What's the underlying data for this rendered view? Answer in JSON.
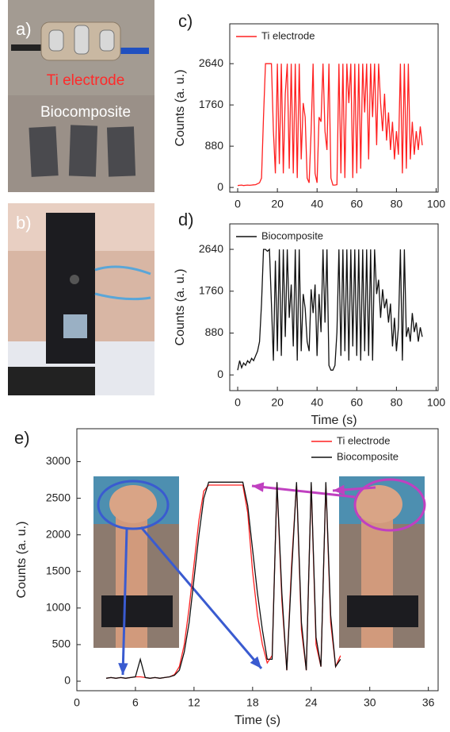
{
  "photos": {
    "a": {
      "label": "a)",
      "electrode_text": "Ti electrode",
      "composite_text": "Biocomposite"
    },
    "b": {
      "label": "b)"
    }
  },
  "chart_data": [
    {
      "type": "line",
      "panel_label": "c)",
      "y_label": "Counts (a. u.)",
      "legend": "upper left",
      "xlim": [
        -4,
        101
      ],
      "ylim": [
        -100,
        3490
      ],
      "xticks": [
        0,
        20,
        40,
        60,
        80,
        100
      ],
      "yticks": [
        0,
        880,
        1760,
        2640
      ],
      "x": [
        0,
        1,
        2,
        3,
        4,
        5,
        6,
        7,
        8,
        9,
        10,
        11,
        12,
        13,
        14,
        15,
        16,
        17,
        18,
        19,
        20,
        21,
        22,
        23,
        24,
        25,
        26,
        27,
        28,
        29,
        30,
        31,
        32,
        33,
        34,
        35,
        36,
        37,
        38,
        39,
        40,
        41,
        42,
        43,
        44,
        45,
        46,
        47,
        48,
        49,
        50,
        51,
        52,
        53,
        54,
        55,
        56,
        57,
        58,
        59,
        60,
        61,
        62,
        63,
        64,
        65,
        66,
        67,
        68,
        69,
        70,
        71,
        72,
        73,
        74,
        75,
        76,
        77,
        78,
        79,
        80,
        81,
        82,
        83,
        84,
        85,
        86,
        87,
        88,
        89,
        90,
        91,
        92,
        93
      ],
      "series": [
        {
          "name": "Ti electrode",
          "color": "#ff2020",
          "values": [
            40,
            45,
            50,
            40,
            45,
            50,
            45,
            50,
            55,
            60,
            80,
            100,
            200,
            1500,
            2640,
            2640,
            2640,
            2640,
            1200,
            300,
            2640,
            500,
            2640,
            300,
            2000,
            2640,
            400,
            2640,
            300,
            2640,
            200,
            2640,
            600,
            1800,
            1500,
            200,
            100,
            1200,
            2640,
            300,
            100,
            1500,
            1400,
            2640,
            1200,
            800,
            2640,
            200,
            50,
            50,
            60,
            2640,
            300,
            2640,
            200,
            2640,
            1800,
            2640,
            200,
            2640,
            300,
            2640,
            400,
            2640,
            1600,
            2640,
            600,
            2640,
            1500,
            2640,
            900,
            2640,
            1800,
            1200,
            2000,
            1000,
            1600,
            800,
            1400,
            600,
            1200,
            700,
            2640,
            300,
            2640,
            400,
            2640,
            600,
            1400,
            700,
            1200,
            800,
            1300,
            900
          ]
        }
      ]
    },
    {
      "type": "line",
      "panel_label": "d)",
      "x_label": "Time (s)",
      "y_label": "Counts (a. u.)",
      "legend": "upper left",
      "xlim": [
        -4,
        101
      ],
      "ylim": [
        -330,
        3175
      ],
      "xticks": [
        0,
        20,
        40,
        60,
        80,
        100
      ],
      "yticks": [
        0,
        880,
        1760,
        2640
      ],
      "x": [
        0,
        1,
        2,
        3,
        4,
        5,
        6,
        7,
        8,
        9,
        10,
        11,
        12,
        13,
        14,
        15,
        16,
        17,
        18,
        19,
        20,
        21,
        22,
        23,
        24,
        25,
        26,
        27,
        28,
        29,
        30,
        31,
        32,
        33,
        34,
        35,
        36,
        37,
        38,
        39,
        40,
        41,
        42,
        43,
        44,
        45,
        46,
        47,
        48,
        49,
        50,
        51,
        52,
        53,
        54,
        55,
        56,
        57,
        58,
        59,
        60,
        61,
        62,
        63,
        64,
        65,
        66,
        67,
        68,
        69,
        70,
        71,
        72,
        73,
        74,
        75,
        76,
        77,
        78,
        79,
        80,
        81,
        82,
        83,
        84,
        85,
        86,
        87,
        88,
        89,
        90,
        91,
        92,
        93
      ],
      "series": [
        {
          "name": "Biocomposite",
          "color": "#111111",
          "values": [
            100,
            300,
            150,
            250,
            200,
            300,
            250,
            350,
            300,
            400,
            500,
            700,
            1500,
            2640,
            2640,
            2600,
            2640,
            1500,
            300,
            2400,
            500,
            2640,
            400,
            2640,
            800,
            2640,
            1200,
            1900,
            600,
            2640,
            300,
            2640,
            500,
            1700,
            1400,
            700,
            500,
            1800,
            1300,
            1900,
            400,
            1700,
            900,
            2640,
            1100,
            2640,
            200,
            100,
            100,
            200,
            900,
            2640,
            400,
            2640,
            500,
            2640,
            300,
            2640,
            600,
            2640,
            400,
            2640,
            300,
            2640,
            500,
            2640,
            400,
            2640,
            300,
            2640,
            1700,
            2000,
            1200,
            1800,
            1400,
            1600,
            1100,
            1500,
            600,
            1200,
            500,
            1000,
            2640,
            300,
            2640,
            800,
            1000,
            700,
            1300,
            900,
            1100,
            700,
            1000,
            800
          ]
        }
      ]
    },
    {
      "type": "line",
      "panel_label": "e)",
      "x_label": "Time (s)",
      "y_label": "Counts (a. u.)",
      "legend": "upper right",
      "xlim": [
        0,
        37
      ],
      "ylim": [
        -130,
        3450
      ],
      "xticks": [
        0,
        6,
        12,
        18,
        24,
        30,
        36
      ],
      "yticks": [
        0,
        500,
        1000,
        1500,
        2000,
        2500,
        3000
      ],
      "x": [
        3,
        3.5,
        4,
        4.5,
        5,
        5.5,
        6,
        6.5,
        7,
        7.5,
        8,
        8.5,
        9,
        9.5,
        10,
        10.5,
        11,
        11.5,
        12,
        12.5,
        13,
        13.5,
        14,
        14.5,
        15,
        15.5,
        16,
        16.5,
        17,
        17.5,
        18,
        18.5,
        19,
        19.5,
        20,
        20.5,
        21,
        21.5,
        22,
        22.5,
        23,
        23.5,
        24,
        24.5,
        25,
        25.5,
        26,
        26.5,
        27
      ],
      "series": [
        {
          "name": "Ti electrode",
          "color": "#ff2020",
          "values": [
            40,
            50,
            40,
            50,
            40,
            50,
            60,
            60,
            50,
            40,
            50,
            40,
            50,
            60,
            90,
            200,
            500,
            1000,
            1600,
            2200,
            2600,
            2680,
            2680,
            2680,
            2680,
            2680,
            2680,
            2680,
            2680,
            2300,
            1500,
            900,
            500,
            250,
            350,
            2700,
            1100,
            150,
            1600,
            2700,
            700,
            150,
            2700,
            500,
            200,
            2700,
            800,
            200,
            350
          ]
        },
        {
          "name": "Biocomposite",
          "color": "#111111",
          "values": [
            40,
            50,
            40,
            50,
            40,
            50,
            60,
            300,
            50,
            40,
            50,
            40,
            50,
            60,
            80,
            150,
            400,
            800,
            1400,
            2000,
            2500,
            2720,
            2720,
            2720,
            2720,
            2720,
            2720,
            2720,
            2720,
            2400,
            1800,
            1200,
            700,
            300,
            300,
            2720,
            1200,
            150,
            1500,
            2720,
            800,
            150,
            2720,
            600,
            200,
            2720,
            900,
            200,
            300
          ]
        }
      ]
    }
  ]
}
